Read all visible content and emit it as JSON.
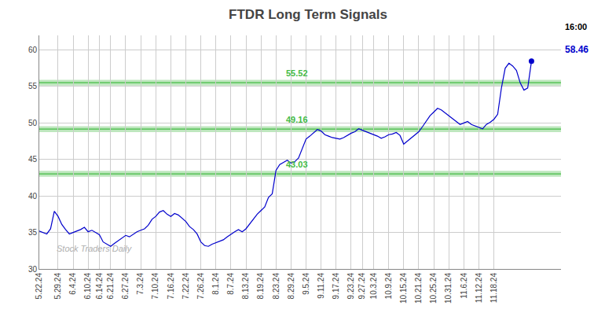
{
  "chart_data": {
    "type": "line",
    "title": "FTDR Long Term Signals",
    "categories": [
      "5.22.24",
      null,
      null,
      null,
      null,
      "5.29.24",
      null,
      null,
      null,
      "6.4.24",
      null,
      null,
      null,
      "6.10.24",
      null,
      null,
      "6.14.24",
      null,
      null,
      "6.21.24",
      null,
      null,
      null,
      "6.27.24",
      null,
      null,
      null,
      "7.3.24",
      null,
      null,
      null,
      "7.10.24",
      null,
      null,
      null,
      "7.16.24",
      null,
      null,
      null,
      "7.22.24",
      null,
      null,
      null,
      "7.26.24",
      null,
      null,
      null,
      "8.1.24",
      null,
      null,
      null,
      "8.7.24",
      null,
      null,
      null,
      "8.13.24",
      null,
      null,
      null,
      "8.19.24",
      null,
      null,
      null,
      "8.23.24",
      null,
      null,
      null,
      "8.29.24",
      null,
      null,
      null,
      "9.5.24",
      null,
      null,
      null,
      "9.11.24",
      null,
      null,
      null,
      "9.17.24",
      null,
      null,
      null,
      "9.23.24",
      null,
      null,
      "9.27.24",
      null,
      null,
      "10.3.24",
      null,
      null,
      null,
      "10.9.24",
      null,
      null,
      null,
      "10.15.24",
      null,
      null,
      null,
      "10.21.24",
      null,
      null,
      null,
      "10.25.24",
      null,
      null,
      null,
      "10.31.24",
      null,
      null,
      null,
      "11.6.24",
      null,
      null,
      null,
      "11.12.24",
      null,
      null,
      null,
      "11.18.24",
      null,
      null,
      null,
      null,
      null,
      null,
      null,
      null,
      null,
      null
    ],
    "values": [
      35.2,
      35.0,
      34.8,
      35.5,
      37.9,
      37.2,
      36.1,
      35.4,
      34.8,
      35.0,
      35.2,
      35.4,
      35.7,
      35.1,
      35.3,
      35.0,
      34.7,
      33.7,
      33.4,
      33.1,
      33.5,
      33.9,
      34.2,
      34.6,
      34.4,
      34.8,
      35.1,
      35.3,
      35.5,
      36.0,
      36.8,
      37.2,
      37.8,
      38.0,
      37.5,
      37.2,
      37.6,
      37.4,
      37.0,
      36.5,
      35.8,
      35.4,
      34.8,
      33.7,
      33.2,
      33.1,
      33.4,
      33.6,
      33.8,
      34.0,
      34.4,
      34.8,
      35.1,
      35.4,
      35.1,
      35.5,
      36.2,
      36.8,
      37.5,
      38.0,
      38.5,
      39.8,
      40.3,
      43.5,
      44.3,
      44.6,
      44.9,
      44.5,
      44.7,
      45.2,
      46.5,
      47.8,
      48.2,
      48.7,
      49.1,
      48.9,
      48.4,
      48.2,
      48.0,
      47.9,
      47.8,
      48.0,
      48.3,
      48.6,
      48.8,
      49.2,
      49.0,
      48.8,
      48.6,
      48.4,
      48.2,
      47.9,
      48.1,
      48.4,
      48.5,
      48.7,
      48.3,
      47.1,
      47.5,
      47.9,
      48.3,
      48.8,
      49.5,
      50.2,
      51.0,
      51.5,
      52.0,
      51.8,
      51.4,
      51.0,
      50.5,
      50.1,
      49.8,
      50.0,
      50.2,
      49.8,
      49.6,
      49.4,
      49.2,
      49.8,
      50.1,
      50.5,
      51.2,
      54.8,
      57.5,
      58.2,
      57.8,
      57.2,
      55.5,
      54.5,
      54.8,
      58.46
    ],
    "color": "#0000cc",
    "marker": "last_point",
    "hlines": [
      {
        "value": 43.03,
        "label": "43.03"
      },
      {
        "value": 49.16,
        "label": "49.16"
      },
      {
        "value": 55.52,
        "label": "55.52"
      }
    ],
    "hline_band": 0.4,
    "hline_color": "#44bb44",
    "ylim": [
      30,
      62
    ],
    "yticks": [
      30,
      35,
      40,
      45,
      50,
      55,
      60
    ],
    "grid": true,
    "grid_color": "#cccccc",
    "watermark": "Stock Traders Daily",
    "last_time": "16:00",
    "last_time_color": "#000000",
    "last_price": "58.46",
    "last_price_color": "#0000cc",
    "background_color": "#ffffff"
  }
}
